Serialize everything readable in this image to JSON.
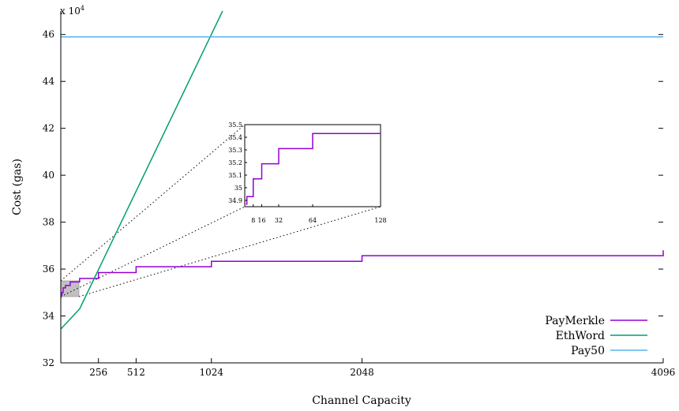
{
  "chart_data": {
    "type": "line",
    "xlabel": "Channel Capacity",
    "ylabel": "Cost (gas)",
    "y_multiplier_label": "x 10",
    "y_multiplier_exponent": "4",
    "xlim": [
      0,
      4096
    ],
    "ylim": [
      32,
      47
    ],
    "x_ticks": [
      256,
      512,
      1024,
      2048,
      4096
    ],
    "x_tick_labels": [
      "256",
      "512",
      "1024",
      "2048",
      "4096"
    ],
    "y_ticks": [
      32,
      34,
      36,
      38,
      40,
      42,
      44,
      46
    ],
    "y_tick_labels": [
      "32",
      "34",
      "36",
      "38",
      "40",
      "42",
      "44",
      "46"
    ],
    "legend_position": "bottom-right",
    "series": [
      {
        "name": "PayMerkle",
        "color": "#9400d3",
        "step": true,
        "points": [
          [
            1,
            34.8
          ],
          [
            2,
            34.9
          ],
          [
            8,
            35.0
          ],
          [
            16,
            35.2
          ],
          [
            32,
            35.3
          ],
          [
            64,
            35.45
          ],
          [
            128,
            35.6
          ],
          [
            256,
            35.85
          ],
          [
            512,
            36.1
          ],
          [
            1024,
            36.33
          ],
          [
            2048,
            36.57
          ],
          [
            4096,
            36.8
          ]
        ]
      },
      {
        "name": "EthWord",
        "color": "#009e73",
        "step": false,
        "points": [
          [
            1,
            33.45
          ],
          [
            128,
            34.3
          ],
          [
            1100,
            47.0
          ]
        ]
      },
      {
        "name": "Pay50",
        "color": "#56b4e9",
        "step": false,
        "points": [
          [
            0,
            45.9
          ],
          [
            4096,
            45.9
          ]
        ]
      }
    ],
    "inset": {
      "source_xlim": [
        0,
        128
      ],
      "source_ylim": [
        34.85,
        35.5
      ],
      "x_ticks": [
        8,
        16,
        32,
        64,
        128
      ],
      "x_tick_labels": [
        "8",
        "16",
        "32",
        "64",
        "128"
      ],
      "y_ticks": [
        34.9,
        35,
        35.1,
        35.2,
        35.3,
        35.4,
        35.5
      ],
      "y_tick_labels": [
        "34.9",
        "35",
        "35.1",
        "35.2",
        "35.3",
        "35.4",
        "35.5"
      ],
      "series": [
        {
          "name": "PayMerkle",
          "color": "#9400d3",
          "points": [
            [
              1,
              34.87
            ],
            [
              2,
              34.93
            ],
            [
              8,
              35.07
            ],
            [
              16,
              35.19
            ],
            [
              32,
              35.31
            ],
            [
              64,
              35.43
            ],
            [
              128,
              35.43
            ]
          ]
        }
      ]
    }
  }
}
